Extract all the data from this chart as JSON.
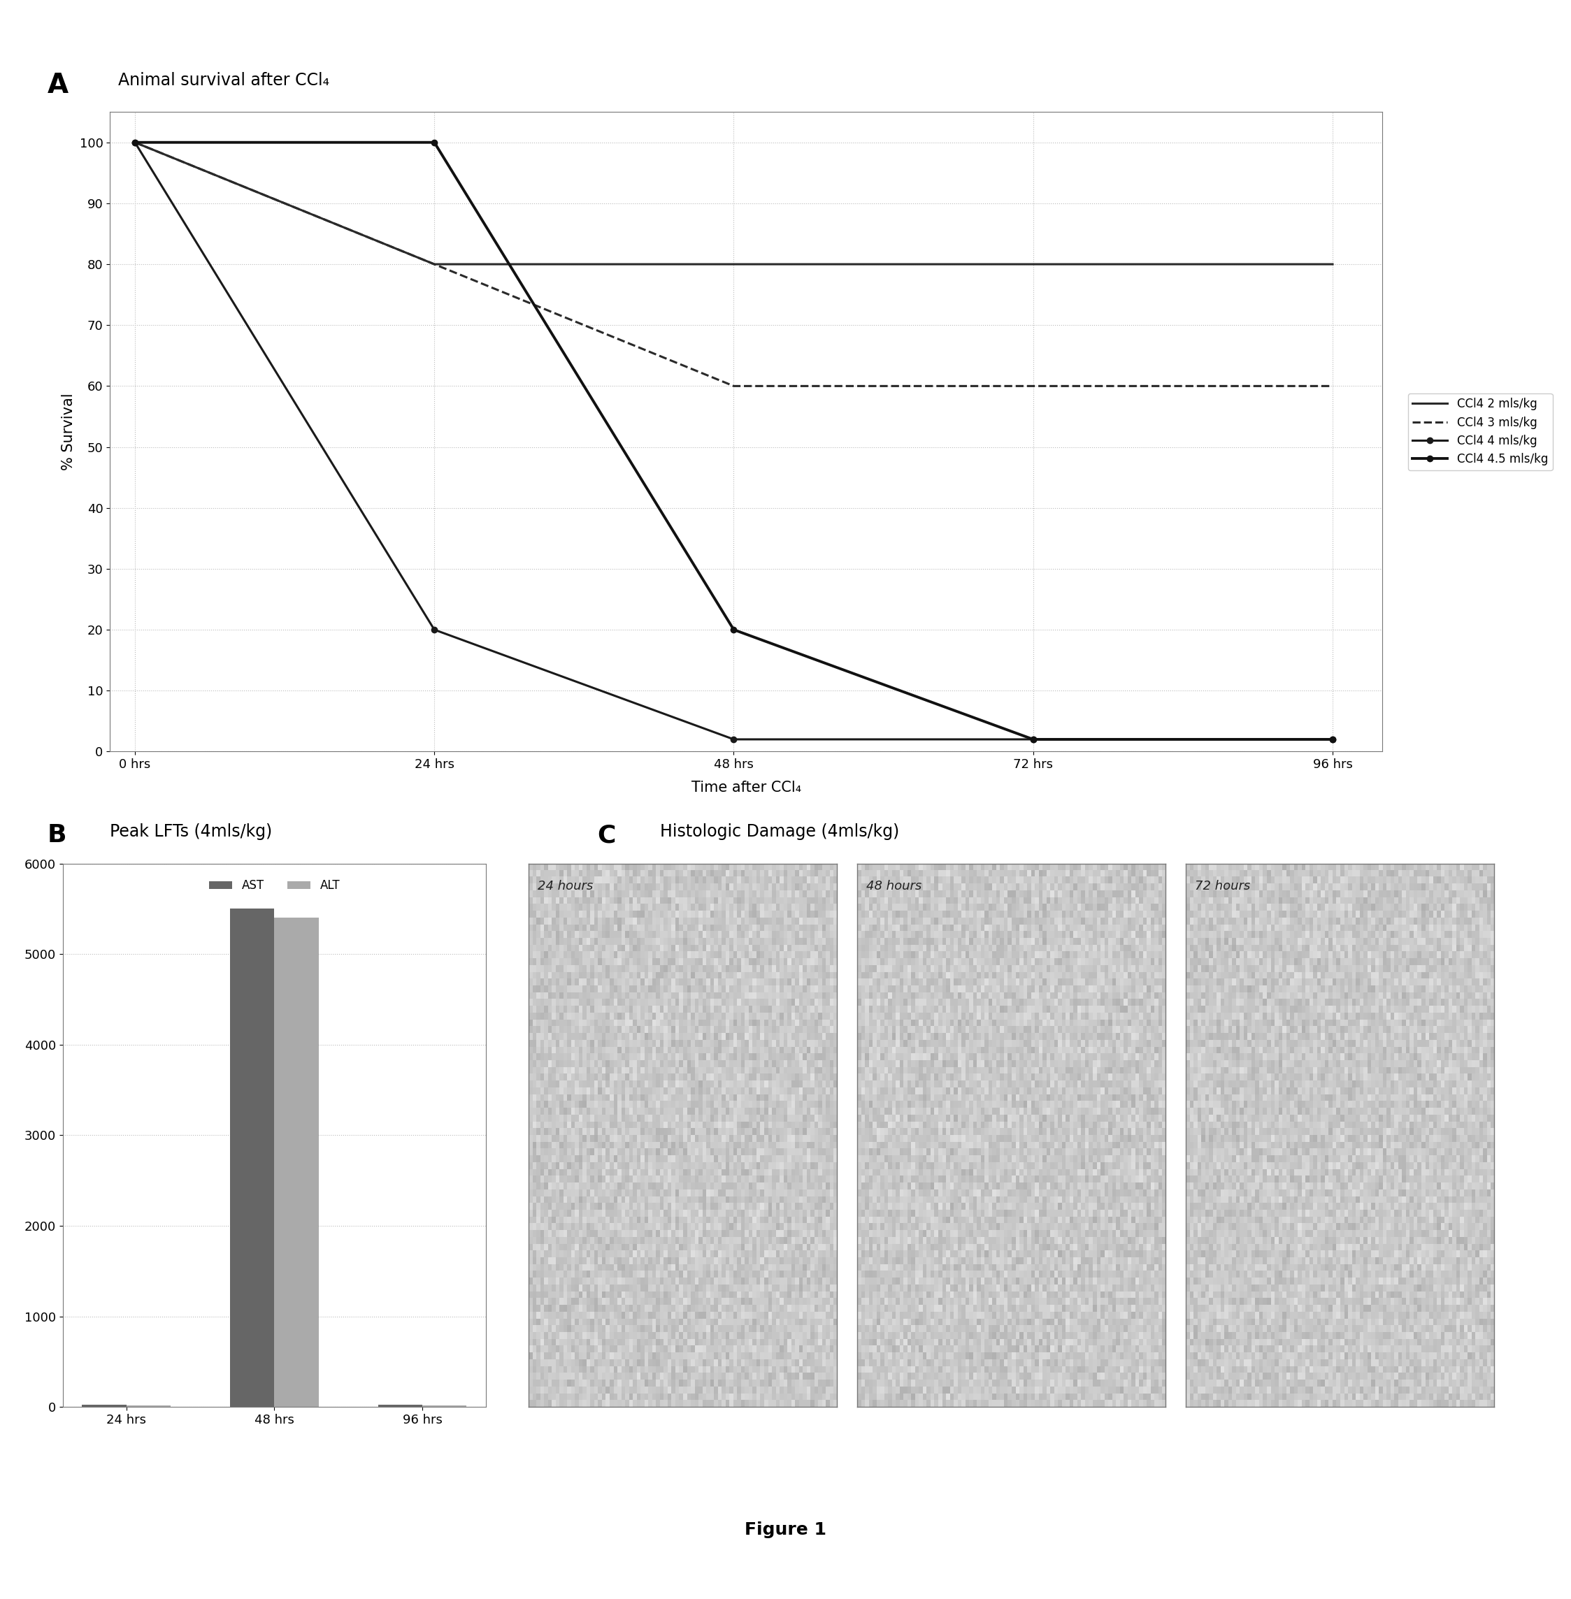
{
  "panel_a": {
    "title": "Animal survival after CCl₄",
    "xlabel": "Time after CCl₄",
    "ylabel": "% Survival",
    "xticks": [
      0,
      24,
      48,
      72,
      96
    ],
    "xticklabels": [
      "0 hrs",
      "24 hrs",
      "48 hrs",
      "72 hrs",
      "96 hrs"
    ],
    "yticks": [
      0,
      10,
      20,
      30,
      40,
      50,
      60,
      70,
      80,
      90,
      100
    ],
    "ylim": [
      0,
      105
    ],
    "xlim": [
      -2,
      100
    ],
    "lines": [
      {
        "label": "CCl4 2 mls/kg",
        "x": [
          0,
          24,
          48,
          72,
          96
        ],
        "y": [
          100,
          80,
          80,
          80,
          80
        ],
        "color": "#2a2a2a",
        "linestyle": "-",
        "marker": "None",
        "linewidth": 2.2,
        "dashes": []
      },
      {
        "label": "CCl4 3 mls/kg",
        "x": [
          0,
          24,
          48,
          72,
          96
        ],
        "y": [
          100,
          80,
          60,
          60,
          60
        ],
        "color": "#2a2a2a",
        "linestyle": "--",
        "marker": "None",
        "linewidth": 2.2,
        "dashes": [
          6,
          4
        ]
      },
      {
        "label": "CCl4 4 mls/kg",
        "x": [
          0,
          24,
          48,
          72,
          96
        ],
        "y": [
          100,
          20,
          2,
          2,
          2
        ],
        "color": "#1a1a1a",
        "linestyle": "-",
        "marker": "o",
        "markersize": 6,
        "linewidth": 2.2,
        "dashes": []
      },
      {
        "label": "CCl4 4.5 mls/kg",
        "x": [
          0,
          24,
          48,
          72,
          96
        ],
        "y": [
          100,
          100,
          20,
          2,
          2
        ],
        "color": "#111111",
        "linestyle": "-",
        "marker": "o",
        "markersize": 6,
        "linewidth": 2.8,
        "dashes": []
      }
    ],
    "grid_color": "#bbbbbb",
    "grid_linestyle": ":"
  },
  "panel_b": {
    "categories": [
      "24 hrs",
      "48 hrs",
      "96 hrs"
    ],
    "ast_values": [
      30,
      5500,
      30
    ],
    "alt_values": [
      20,
      5400,
      20
    ],
    "ast_color": "#666666",
    "alt_color": "#aaaaaa",
    "ylim": [
      0,
      6000
    ],
    "yticks": [
      0,
      1000,
      2000,
      3000,
      4000,
      5000,
      6000
    ],
    "bar_width": 0.3,
    "legend_labels": [
      "AST",
      "ALT"
    ]
  },
  "panel_c": {
    "timepoints": [
      "24 hours",
      "48 hours",
      "72 hours"
    ],
    "image_color": "#d0d0c8",
    "noise_seed": 42
  },
  "figure_label": "Figure 1",
  "bg_color": "#ffffff",
  "label_A_fontsize": 28,
  "label_BC_fontsize": 26,
  "panel_title_fontsize": 17,
  "tick_fontsize": 13,
  "legend_fontsize": 12,
  "axis_label_fontsize": 15
}
